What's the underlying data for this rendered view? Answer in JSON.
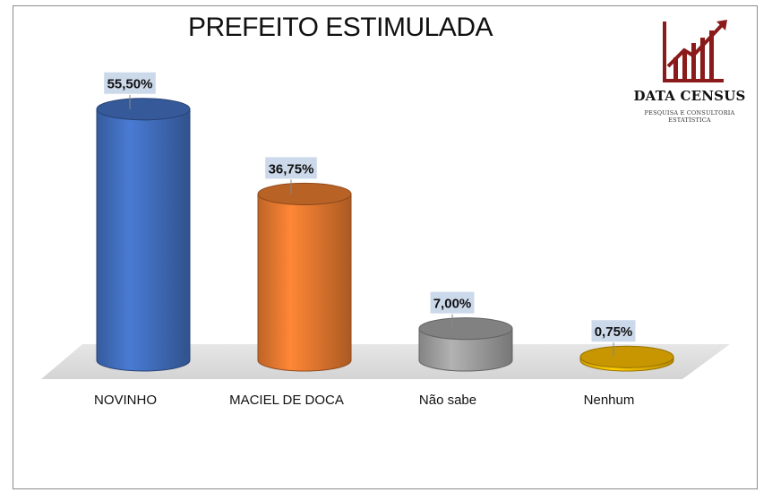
{
  "header": {
    "title": "PREFEITO ESTIMULADA"
  },
  "logo": {
    "name": "DATA CENSUS",
    "tagline": "PESQUISA E CONSULTORIA ESTATÍSTICA",
    "color": "#8b1a1a"
  },
  "chart_data": {
    "type": "bar",
    "style": "3d-cylinder",
    "title": "PREFEITO ESTIMULADA",
    "categories": [
      "NOVINHO",
      "MACIEL DE DOCA",
      "Não sabe",
      "Nenhum"
    ],
    "values": [
      55.5,
      36.75,
      7.0,
      0.75
    ],
    "data_labels": [
      "55,50%",
      "36,75%",
      "7,00%",
      "0,75%"
    ],
    "colors": [
      "#4472c4",
      "#ed7d31",
      "#a5a5a5",
      "#ffc000"
    ],
    "ylim": [
      0,
      60
    ],
    "grid": false,
    "legend": "none"
  }
}
